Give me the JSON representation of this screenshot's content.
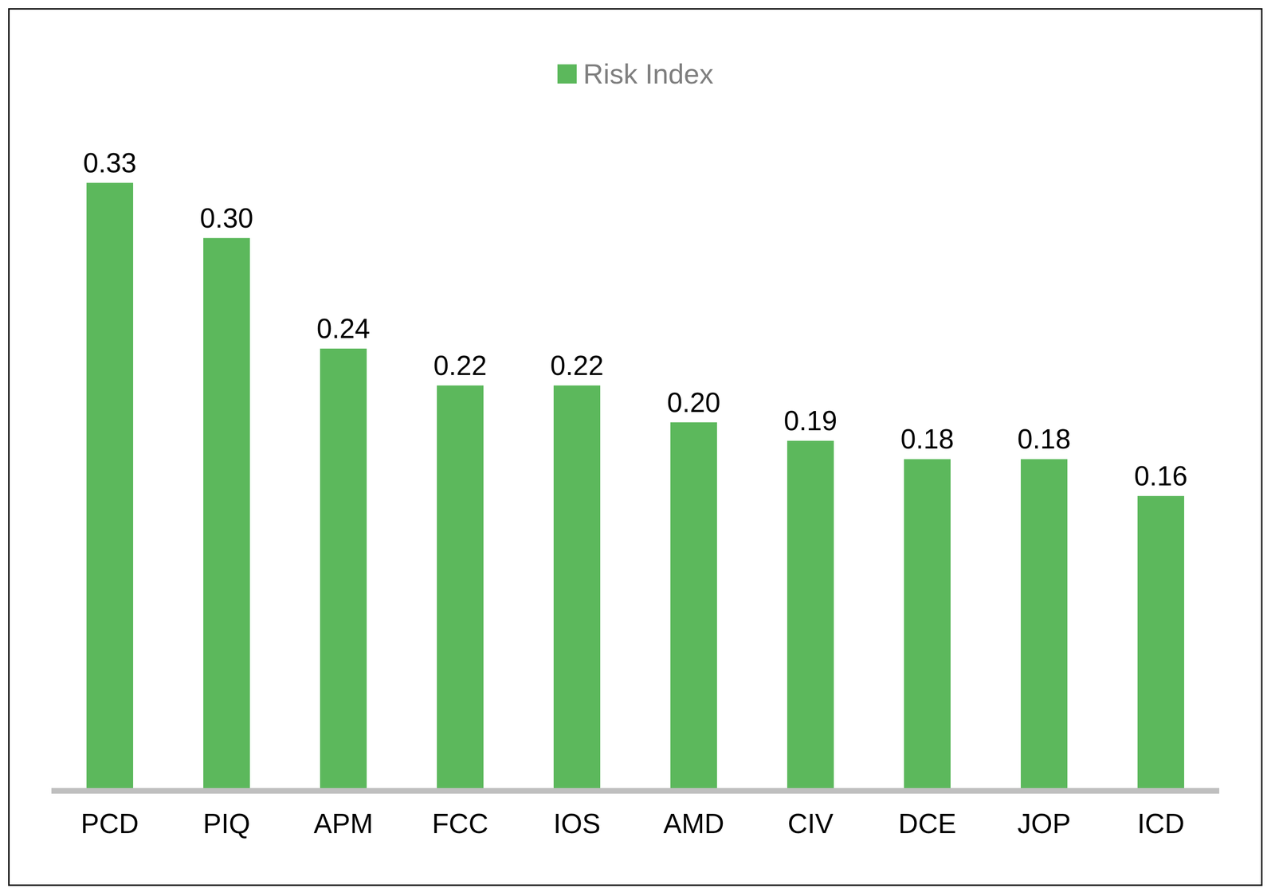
{
  "chart_data": {
    "type": "bar",
    "categories": [
      "PCD",
      "PIQ",
      "APM",
      "FCC",
      "IOS",
      "AMD",
      "CIV",
      "DCE",
      "JOP",
      "ICD"
    ],
    "series": [
      {
        "name": "Risk Index",
        "color": "#5cb85c",
        "values": [
          0.33,
          0.3,
          0.24,
          0.22,
          0.22,
          0.2,
          0.19,
          0.18,
          0.18,
          0.16
        ],
        "value_labels": [
          "0.33",
          "0.30",
          "0.24",
          "0.22",
          "0.22",
          "0.20",
          "0.19",
          "0.18",
          "0.18",
          "0.16"
        ]
      }
    ],
    "ylim": [
      0,
      0.35
    ],
    "grid": false,
    "legend": "top",
    "data_labels": true,
    "tick_labels": "x"
  }
}
